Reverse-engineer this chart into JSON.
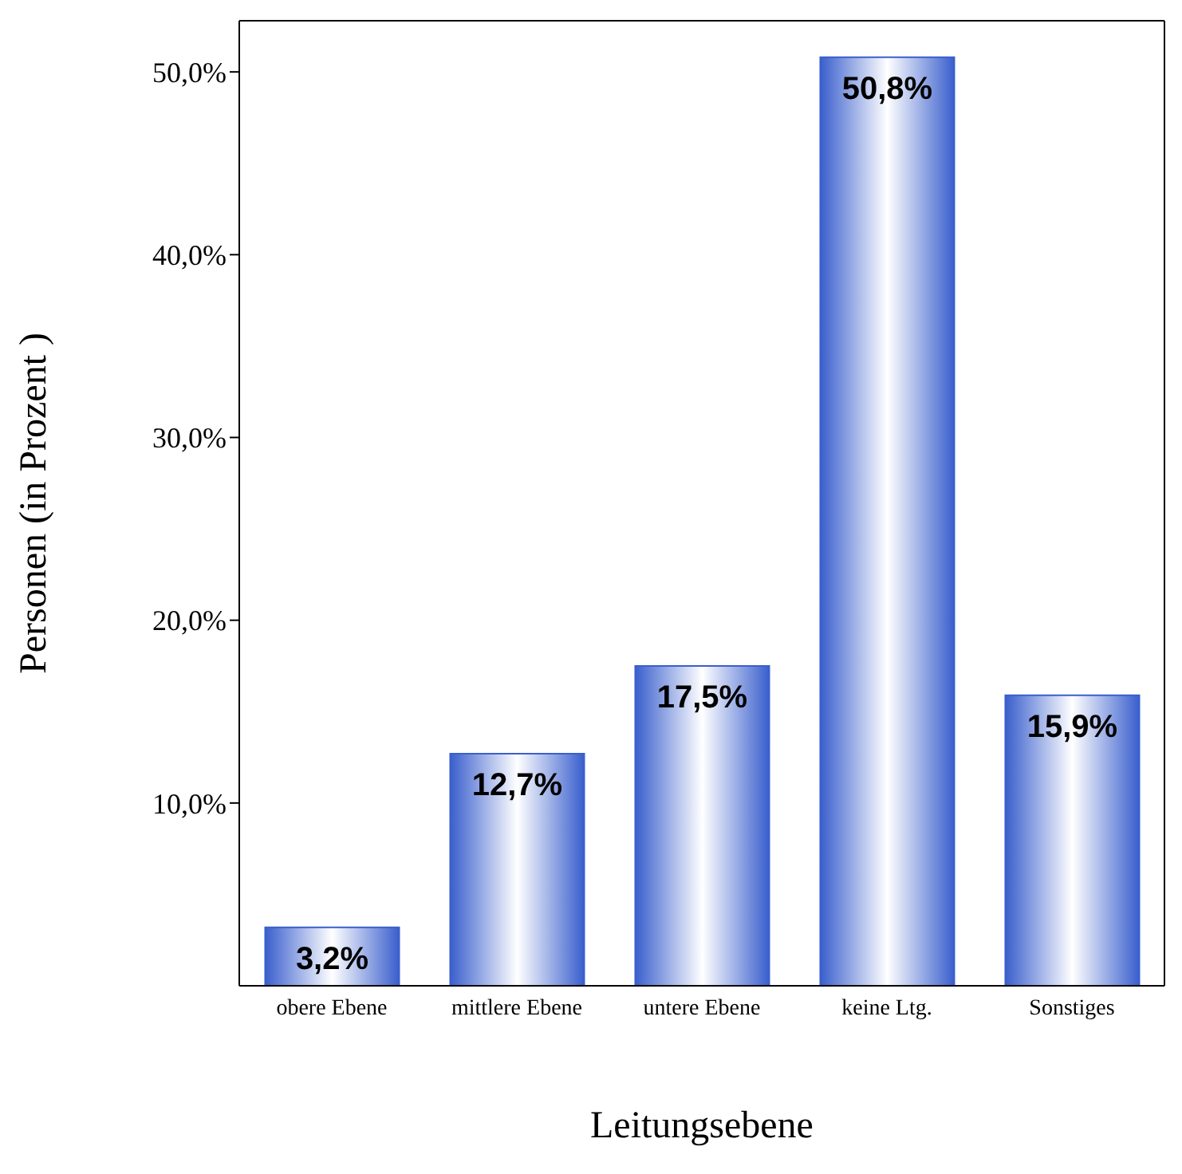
{
  "chart_data": {
    "type": "bar",
    "xlabel": "Leitungsebene",
    "ylabel": "Personen (in Prozent )",
    "categories": [
      "obere Ebene",
      "mittlere Ebene",
      "untere Ebene",
      "keine Ltg.",
      "Sonstiges"
    ],
    "values": [
      3.2,
      12.7,
      17.5,
      50.8,
      15.9
    ],
    "value_labels": [
      "3,2%",
      "12,7%",
      "17,5%",
      "50,8%",
      "15,9%"
    ],
    "color": "#3a5fcd",
    "ylim": [
      0,
      52.8
    ],
    "yticks": [
      {
        "value": 10,
        "label": "10,0%"
      },
      {
        "value": 20,
        "label": "20,0%"
      },
      {
        "value": 30,
        "label": "30,0%"
      },
      {
        "value": 40,
        "label": "40,0%"
      },
      {
        "value": 50,
        "label": "50,0%"
      }
    ],
    "grid": false,
    "legend": false
  }
}
